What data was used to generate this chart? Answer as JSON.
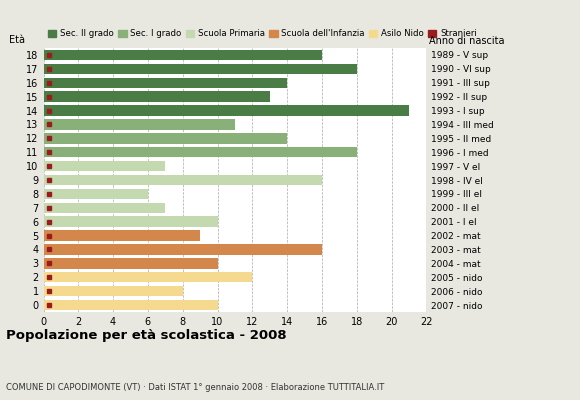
{
  "ages": [
    18,
    17,
    16,
    15,
    14,
    13,
    12,
    11,
    10,
    9,
    8,
    7,
    6,
    5,
    4,
    3,
    2,
    1,
    0
  ],
  "anno_nascita": [
    "1989 - V sup",
    "1990 - VI sup",
    "1991 - III sup",
    "1992 - II sup",
    "1993 - I sup",
    "1994 - III med",
    "1995 - II med",
    "1996 - I med",
    "1997 - V el",
    "1998 - IV el",
    "1999 - III el",
    "2000 - II el",
    "2001 - I el",
    "2002 - mat",
    "2003 - mat",
    "2004 - mat",
    "2005 - nido",
    "2006 - nido",
    "2007 - nido"
  ],
  "values": [
    16,
    18,
    14,
    13,
    21,
    11,
    14,
    18,
    7,
    16,
    6,
    7,
    10,
    9,
    16,
    10,
    12,
    8,
    10
  ],
  "colors": {
    "sec2": "#4a7c45",
    "sec1": "#8ab07a",
    "primaria": "#c5d9b0",
    "infanzia": "#d4874b",
    "nido": "#f5d98e",
    "stranieri": "#9b1c1c"
  },
  "bar_colors": [
    "sec2",
    "sec2",
    "sec2",
    "sec2",
    "sec2",
    "sec1",
    "sec1",
    "sec1",
    "primaria",
    "primaria",
    "primaria",
    "primaria",
    "primaria",
    "infanzia",
    "infanzia",
    "infanzia",
    "nido",
    "nido",
    "nido"
  ],
  "title": "Popolazione per età scolastica - 2008",
  "subtitle": "COMUNE DI CAPODIMONTE (VT) · Dati ISTAT 1° gennaio 2008 · Elaborazione TUTTITALIA.IT",
  "ylabel": "Età",
  "xlabel2": "Anno di nascita",
  "xlim": [
    0,
    22
  ],
  "xticks": [
    0,
    2,
    4,
    6,
    8,
    10,
    12,
    14,
    16,
    18,
    20,
    22
  ],
  "legend_labels": [
    "Sec. II grado",
    "Sec. I grado",
    "Scuola Primaria",
    "Scuola dell'Infanzia",
    "Asilo Nido",
    "Stranieri"
  ],
  "outer_bg": "#e8e8e0",
  "inner_bg": "#ffffff"
}
